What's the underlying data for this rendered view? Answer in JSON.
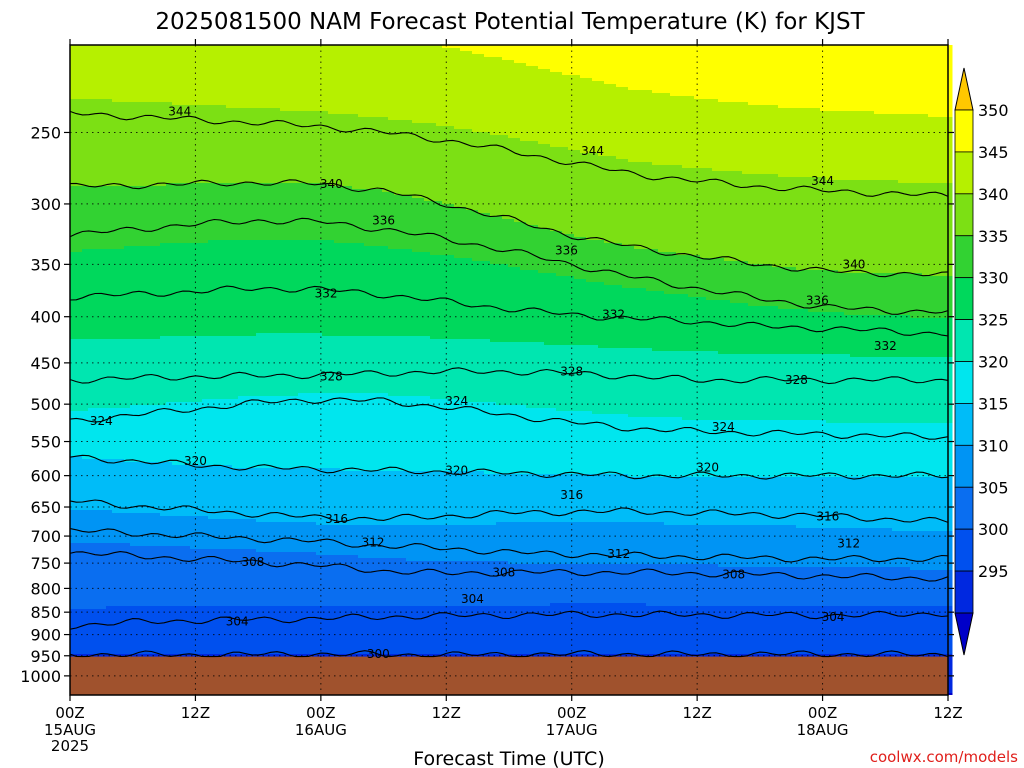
{
  "chart_data": {
    "type": "contour",
    "title": "2025081500 NAM Forecast Potential Temperature (K) for KJST",
    "xlabel": "Forecast Time (UTC)",
    "ylabel": "",
    "credit": "coolwx.com/models",
    "y_axis": {
      "scale": "log-pressure (inverted)",
      "range_hpa": [
        1050,
        200
      ],
      "ticks": [
        250,
        300,
        350,
        400,
        450,
        500,
        550,
        600,
        650,
        700,
        750,
        800,
        850,
        900,
        950,
        1000
      ]
    },
    "x_axis": {
      "range_hours": [
        0,
        84
      ],
      "ticks": [
        {
          "hour": 0,
          "label": "00Z",
          "date": "15AUG",
          "year": "2025"
        },
        {
          "hour": 12,
          "label": "12Z",
          "date": "",
          "year": ""
        },
        {
          "hour": 24,
          "label": "00Z",
          "date": "16AUG",
          "year": ""
        },
        {
          "hour": 36,
          "label": "12Z",
          "date": "",
          "year": ""
        },
        {
          "hour": 48,
          "label": "00Z",
          "date": "17AUG",
          "year": ""
        },
        {
          "hour": 60,
          "label": "12Z",
          "date": "",
          "year": ""
        },
        {
          "hour": 72,
          "label": "00Z",
          "date": "18AUG",
          "year": ""
        },
        {
          "hour": 84,
          "label": "12Z",
          "date": "",
          "year": ""
        }
      ]
    },
    "grid": true,
    "surface_pressure_hpa": 952,
    "colorbar": {
      "position": "right",
      "levels": [
        295,
        300,
        305,
        310,
        315,
        320,
        325,
        330,
        335,
        340,
        345,
        350
      ],
      "colors": [
        "#0000c8",
        "#0028e0",
        "#0050ee",
        "#0a6ef0",
        "#0094f4",
        "#00bcf8",
        "#00e6ee",
        "#00e6b0",
        "#00d85c",
        "#32d232",
        "#7ce014",
        "#b6f000",
        "#ffff00",
        "#ffc800"
      ]
    },
    "contour_interval": 4,
    "contour_lines": [
      {
        "value": 300,
        "pressures_hpa": [
          946,
          947,
          948,
          947,
          946,
          947,
          948,
          947,
          946,
          946,
          947,
          946,
          946,
          947,
          947
        ]
      },
      {
        "value": 304,
        "pressures_hpa": [
          880,
          872,
          868,
          866,
          864,
          860,
          858,
          856,
          855,
          855,
          856,
          856,
          857,
          856,
          852
        ]
      },
      {
        "value": 308,
        "pressures_hpa": [
          730,
          736,
          742,
          748,
          755,
          765,
          770,
          768,
          768,
          768,
          770,
          772,
          775,
          778,
          780
        ]
      },
      {
        "value": 312,
        "pressures_hpa": [
          690,
          695,
          700,
          705,
          710,
          718,
          722,
          730,
          733,
          736,
          738,
          740,
          742,
          742,
          742
        ]
      },
      {
        "value": 316,
        "pressures_hpa": [
          640,
          648,
          655,
          662,
          668,
          670,
          665,
          660,
          658,
          657,
          660,
          662,
          665,
          670,
          675
        ]
      },
      {
        "value": 320,
        "pressures_hpa": [
          572,
          578,
          584,
          588,
          590,
          592,
          594,
          596,
          598,
          600,
          600,
          600,
          600,
          600,
          600
        ]
      },
      {
        "value": 324,
        "pressures_hpa": [
          522,
          514,
          506,
          498,
          494,
          496,
          504,
          514,
          524,
          532,
          536,
          538,
          540,
          542,
          544
        ]
      },
      {
        "value": 328,
        "pressures_hpa": [
          470,
          468,
          466,
          465,
          464,
          462,
          460,
          460,
          462,
          466,
          470,
          470,
          470,
          470,
          470
        ]
      },
      {
        "value": 332,
        "pressures_hpa": [
          380,
          378,
          375,
          372,
          373,
          378,
          385,
          392,
          398,
          402,
          405,
          410,
          412,
          415,
          418
        ]
      },
      {
        "value": 336,
        "pressures_hpa": [
          325,
          320,
          316,
          313,
          314,
          320,
          328,
          338,
          350,
          362,
          372,
          382,
          390,
          394,
          395
        ]
      },
      {
        "value": 340,
        "pressures_hpa": [
          287,
          286,
          285,
          284,
          285,
          290,
          300,
          312,
          325,
          335,
          343,
          350,
          356,
          358,
          360
        ]
      },
      {
        "value": 344,
        "pressures_hpa": [
          238,
          240,
          242,
          244,
          246,
          250,
          255,
          262,
          270,
          278,
          283,
          287,
          290,
          292,
          294
        ]
      }
    ],
    "contour_labels": [
      {
        "text": "344",
        "hour": 10.5,
        "p": 237
      },
      {
        "text": "340",
        "hour": 25,
        "p": 285
      },
      {
        "text": "336",
        "hour": 30,
        "p": 313
      },
      {
        "text": "332",
        "hour": 24.5,
        "p": 377
      },
      {
        "text": "328",
        "hour": 25,
        "p": 466
      },
      {
        "text": "324",
        "hour": 37,
        "p": 496
      },
      {
        "text": "320",
        "hour": 12,
        "p": 578
      },
      {
        "text": "316",
        "hour": 25.5,
        "p": 670
      },
      {
        "text": "312",
        "hour": 29,
        "p": 712
      },
      {
        "text": "308",
        "hour": 17.5,
        "p": 748
      },
      {
        "text": "304",
        "hour": 16,
        "p": 870
      },
      {
        "text": "300",
        "hour": 29.5,
        "p": 946
      },
      {
        "text": "344",
        "hour": 50,
        "p": 262
      },
      {
        "text": "336",
        "hour": 47.5,
        "p": 338
      },
      {
        "text": "332",
        "hour": 52,
        "p": 398
      },
      {
        "text": "328",
        "hour": 48,
        "p": 460
      },
      {
        "text": "324",
        "hour": 3,
        "p": 522
      },
      {
        "text": "320",
        "hour": 37,
        "p": 592
      },
      {
        "text": "316",
        "hour": 48,
        "p": 630
      },
      {
        "text": "312",
        "hour": 52.5,
        "p": 733
      },
      {
        "text": "308",
        "hour": 41.5,
        "p": 768
      },
      {
        "text": "304",
        "hour": 38.5,
        "p": 822
      },
      {
        "text": "344",
        "hour": 72,
        "p": 283
      },
      {
        "text": "340",
        "hour": 75,
        "p": 350
      },
      {
        "text": "336",
        "hour": 71.5,
        "p": 384
      },
      {
        "text": "332",
        "hour": 78,
        "p": 431
      },
      {
        "text": "328",
        "hour": 69.5,
        "p": 470
      },
      {
        "text": "324",
        "hour": 62.5,
        "p": 530
      },
      {
        "text": "320",
        "hour": 61,
        "p": 588
      },
      {
        "text": "316",
        "hour": 72.5,
        "p": 666
      },
      {
        "text": "312",
        "hour": 74.5,
        "p": 713
      },
      {
        "text": "308",
        "hour": 63.5,
        "p": 772
      },
      {
        "text": "304",
        "hour": 73,
        "p": 860
      }
    ]
  }
}
